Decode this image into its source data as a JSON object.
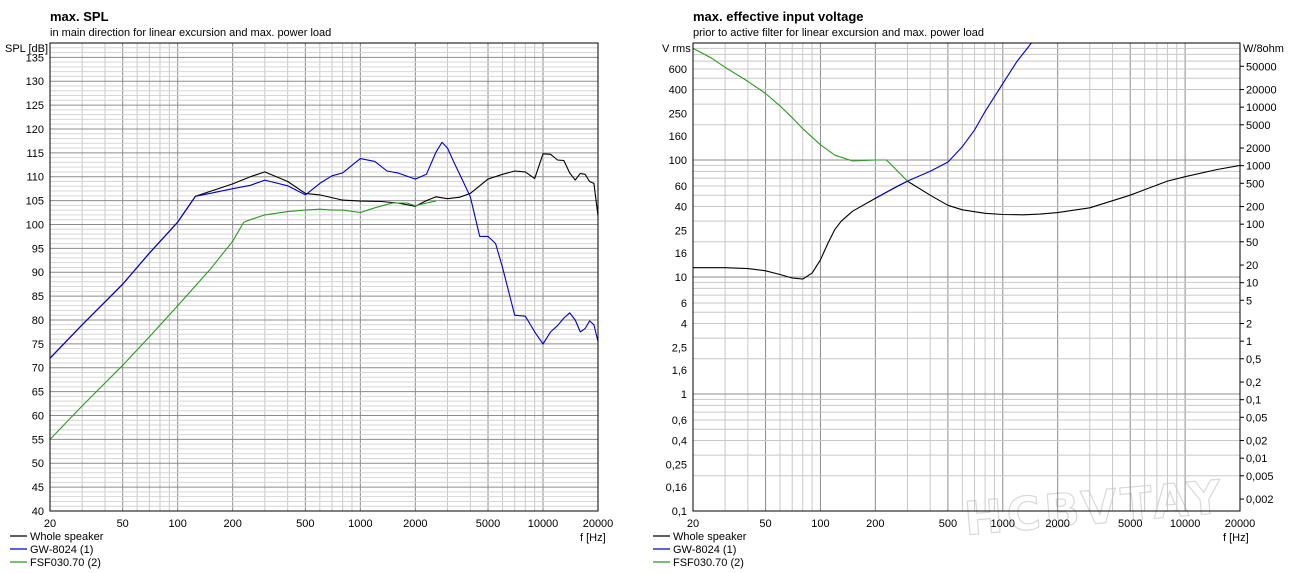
{
  "watermark": "HCBVTAY",
  "chart_data": [
    {
      "type": "line",
      "title": "max. SPL",
      "subtitle": "in main direction for linear excursion and max. power load",
      "ylabel": "SPL [dB]",
      "xlabel": "f [Hz]",
      "xscale": "log",
      "xlim": [
        20,
        20000
      ],
      "ylim": [
        40,
        138
      ],
      "xticks": [
        20,
        50,
        100,
        200,
        500,
        1000,
        2000,
        5000,
        10000,
        20000
      ],
      "xtick_labels": [
        "20",
        "50",
        "100",
        "200",
        "500",
        "1000",
        "2000",
        "5000",
        "10000",
        "20000"
      ],
      "yticks": [
        40,
        45,
        50,
        55,
        60,
        65,
        70,
        75,
        80,
        85,
        90,
        95,
        100,
        105,
        110,
        115,
        120,
        125,
        130,
        135
      ],
      "ytick_labels": [
        "40",
        "45",
        "50",
        "55",
        "60",
        "65",
        "70",
        "75",
        "80",
        "85",
        "90",
        "95",
        "100",
        "105",
        "110",
        "115",
        "120",
        "125",
        "130",
        "135"
      ],
      "grid": true,
      "legend_position": "bottom-left",
      "series": [
        {
          "name": "Whole speaker",
          "color": "#000000",
          "x": [
            20,
            30,
            50,
            70,
            100,
            125,
            150,
            200,
            250,
            300,
            400,
            500,
            600,
            800,
            1000,
            1300,
            1600,
            2000,
            2300,
            2600,
            3000,
            3500,
            4000,
            5000,
            6000,
            7000,
            8000,
            9000,
            10000,
            11000,
            12000,
            13000,
            14000,
            15000,
            16000,
            17000,
            18000,
            19000,
            20000
          ],
          "y": [
            72,
            79,
            87.5,
            94,
            100.5,
            105.9,
            106.9,
            108.5,
            110,
            111,
            109,
            106.5,
            106.2,
            105.1,
            104.9,
            104.8,
            104.5,
            103.8,
            105,
            105.8,
            105.4,
            105.7,
            106.5,
            109.5,
            110.5,
            111.2,
            111,
            109.6,
            114.8,
            114.7,
            113.5,
            113.4,
            110.8,
            109.3,
            110.7,
            110.5,
            109,
            108.6,
            101.8
          ]
        },
        {
          "name": "GW-8024 (1)",
          "color": "#0000d0",
          "x": [
            20,
            30,
            50,
            70,
            100,
            125,
            150,
            200,
            250,
            300,
            400,
            500,
            600,
            700,
            800,
            1000,
            1200,
            1400,
            1600,
            2000,
            2300,
            2600,
            2800,
            3000,
            3300,
            3600,
            4000,
            4500,
            5000,
            5500,
            6000,
            7000,
            8000,
            9000,
            10000,
            11000,
            12000,
            13000,
            14000,
            15000,
            16000,
            17000,
            18000,
            19000,
            20000
          ],
          "y": [
            72,
            79,
            87.5,
            94,
            100.5,
            105.9,
            106.5,
            107.5,
            108.2,
            109.3,
            108.1,
            106.2,
            108.6,
            110.2,
            110.8,
            113.8,
            113.2,
            111.2,
            110.8,
            109.5,
            110.5,
            115.2,
            117.2,
            116,
            112.5,
            109.5,
            105.8,
            97.5,
            97.5,
            96,
            91,
            81,
            80.8,
            77.5,
            75,
            77.5,
            78.8,
            80.4,
            81.5,
            80,
            77.5,
            78.2,
            79.8,
            79,
            75.5
          ]
        },
        {
          "name": "FSF030.70 (2)",
          "color": "#2a9a1e",
          "x": [
            20,
            30,
            50,
            70,
            100,
            150,
            200,
            230,
            250,
            300,
            400,
            500,
            600,
            700,
            800,
            1000,
            1200,
            1500,
            1800,
            2000,
            2300,
            2600
          ],
          "y": [
            55,
            62,
            70.5,
            76.5,
            83,
            90.5,
            96.5,
            100.5,
            101,
            102,
            102.7,
            103,
            103.2,
            103,
            103,
            102.5,
            103.5,
            104.5,
            104.5,
            103.9,
            104.5,
            104.9
          ]
        }
      ]
    },
    {
      "type": "line",
      "title": "max. effective input voltage",
      "subtitle": "prior to active filter for linear excursion and max. power load",
      "ylabel": "V rms",
      "y2label": "W/8ohm",
      "xlabel": "f [Hz]",
      "xscale": "log",
      "yscale": "log",
      "xlim": [
        20,
        20000
      ],
      "ylim": [
        0.1,
        1000
      ],
      "xticks": [
        20,
        50,
        100,
        200,
        500,
        1000,
        2000,
        5000,
        10000,
        20000
      ],
      "xtick_labels": [
        "20",
        "50",
        "100",
        "200",
        "500",
        "1000",
        "2000",
        "5000",
        "10000",
        "20000"
      ],
      "yticks": [
        0.1,
        0.16,
        0.25,
        0.4,
        0.6,
        1,
        1.6,
        2.5,
        4,
        6,
        10,
        16,
        25,
        40,
        60,
        100,
        160,
        250,
        400,
        600
      ],
      "ytick_labels": [
        "0,1",
        "0,16",
        "0,25",
        "0,4",
        "0,6",
        "1",
        "1,6",
        "2,5",
        "4",
        "6",
        "10",
        "16",
        "25",
        "40",
        "60",
        "100",
        "160",
        "250",
        "400",
        "600"
      ],
      "y2ticks": [
        0.002,
        0.005,
        0.01,
        0.02,
        0.05,
        0.1,
        0.2,
        0.5,
        1,
        2,
        5,
        10,
        20,
        50,
        100,
        200,
        500,
        1000,
        2000,
        5000,
        10000,
        20000,
        50000
      ],
      "y2tick_labels": [
        "0,002",
        "0,005",
        "0,01",
        "0,02",
        "0,05",
        "0,1",
        "0,2",
        "0,5",
        "1",
        "2",
        "5",
        "10",
        "20",
        "50",
        "100",
        "200",
        "500",
        "1000",
        "2000",
        "5000",
        "10000",
        "20000",
        "50000"
      ],
      "grid": true,
      "legend_position": "bottom-left",
      "series": [
        {
          "name": "Whole speaker",
          "color": "#000000",
          "x": [
            20,
            30,
            40,
            50,
            60,
            70,
            80,
            90,
            100,
            110,
            120,
            130,
            150,
            200,
            250,
            300,
            400,
            500,
            600,
            800,
            1000,
            1300,
            1600,
            2000,
            3000,
            5000,
            8000,
            10000,
            15000,
            20000
          ],
          "y": [
            12,
            12,
            11.8,
            11.3,
            10.5,
            9.8,
            9.6,
            10.8,
            14,
            19.5,
            25.5,
            30,
            36.5,
            47,
            57,
            66,
            50,
            41,
            37.5,
            35,
            34.2,
            34,
            34.5,
            35.5,
            39,
            50,
            66,
            72,
            83,
            90
          ]
        },
        {
          "name": "GW-8024 (1)",
          "color": "#0000d0",
          "x": [
            200,
            250,
            300,
            400,
            500,
            600,
            700,
            800,
            1000,
            1200,
            1400,
            1500,
            1560,
            20000
          ],
          "y": [
            47,
            57,
            66,
            80,
            96,
            130,
            180,
            260,
            450,
            700,
            950,
            1100,
            1200,
            1200
          ]
        },
        {
          "name": "FSF030.70 (2)",
          "color": "#2a9a1e",
          "x": [
            20,
            25,
            30,
            40,
            50,
            60,
            70,
            80,
            100,
            120,
            150,
            200,
            230,
            250,
            300
          ],
          "y": [
            900,
            750,
            620,
            470,
            370,
            290,
            230,
            185,
            135,
            110,
            98,
            100,
            100,
            88,
            66
          ]
        }
      ]
    }
  ]
}
